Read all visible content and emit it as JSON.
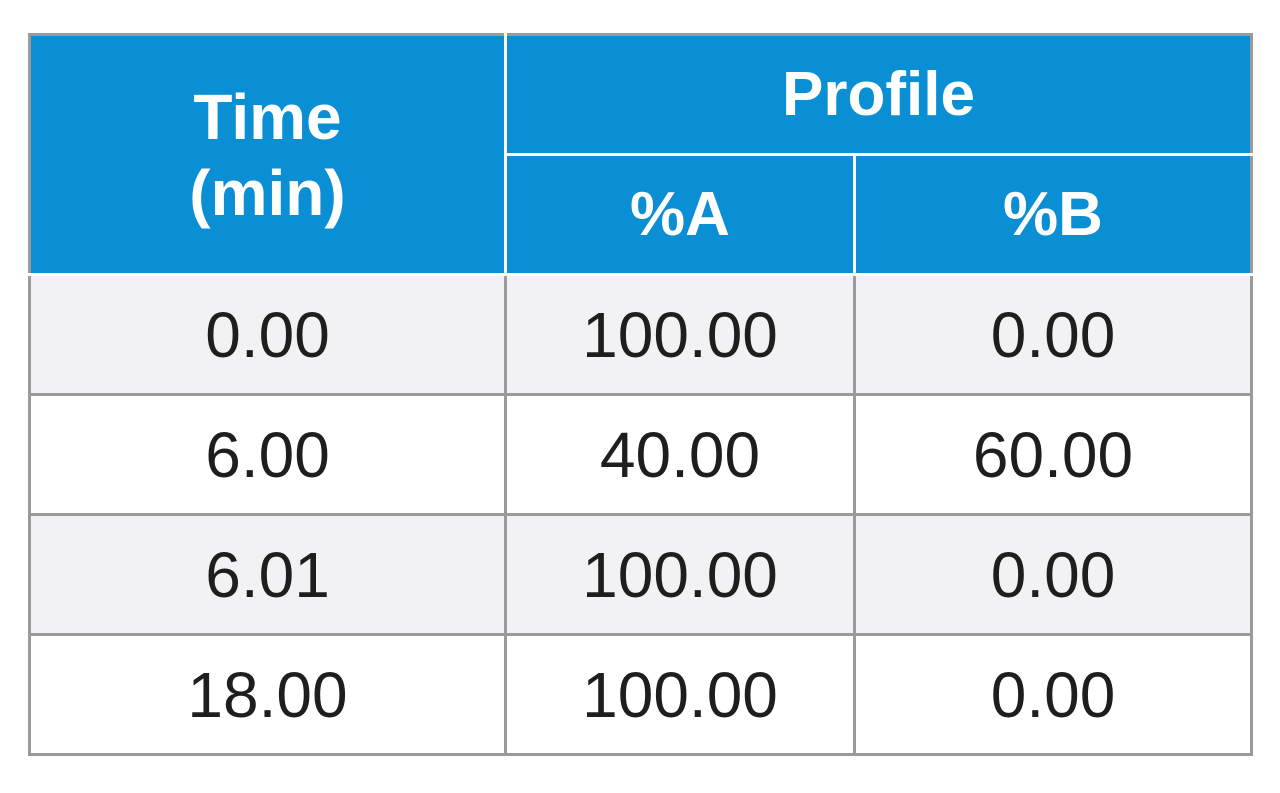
{
  "table": {
    "header": {
      "time_line1": "Time",
      "time_line2": "(min)",
      "profile": "Profile",
      "col_a": "%A",
      "col_b": "%B"
    },
    "rows": [
      {
        "time": "0.00",
        "a": "100.00",
        "b": "0.00"
      },
      {
        "time": "6.00",
        "a": "40.00",
        "b": "60.00"
      },
      {
        "time": "6.01",
        "a": "100.00",
        "b": "0.00"
      },
      {
        "time": "18.00",
        "a": "100.00",
        "b": "0.00"
      }
    ],
    "colors": {
      "header_bg": "#0a8fd4",
      "header_text": "#ffffff",
      "row_alt_bg": "#f2f2f4",
      "border": "#9a9a9a"
    }
  }
}
